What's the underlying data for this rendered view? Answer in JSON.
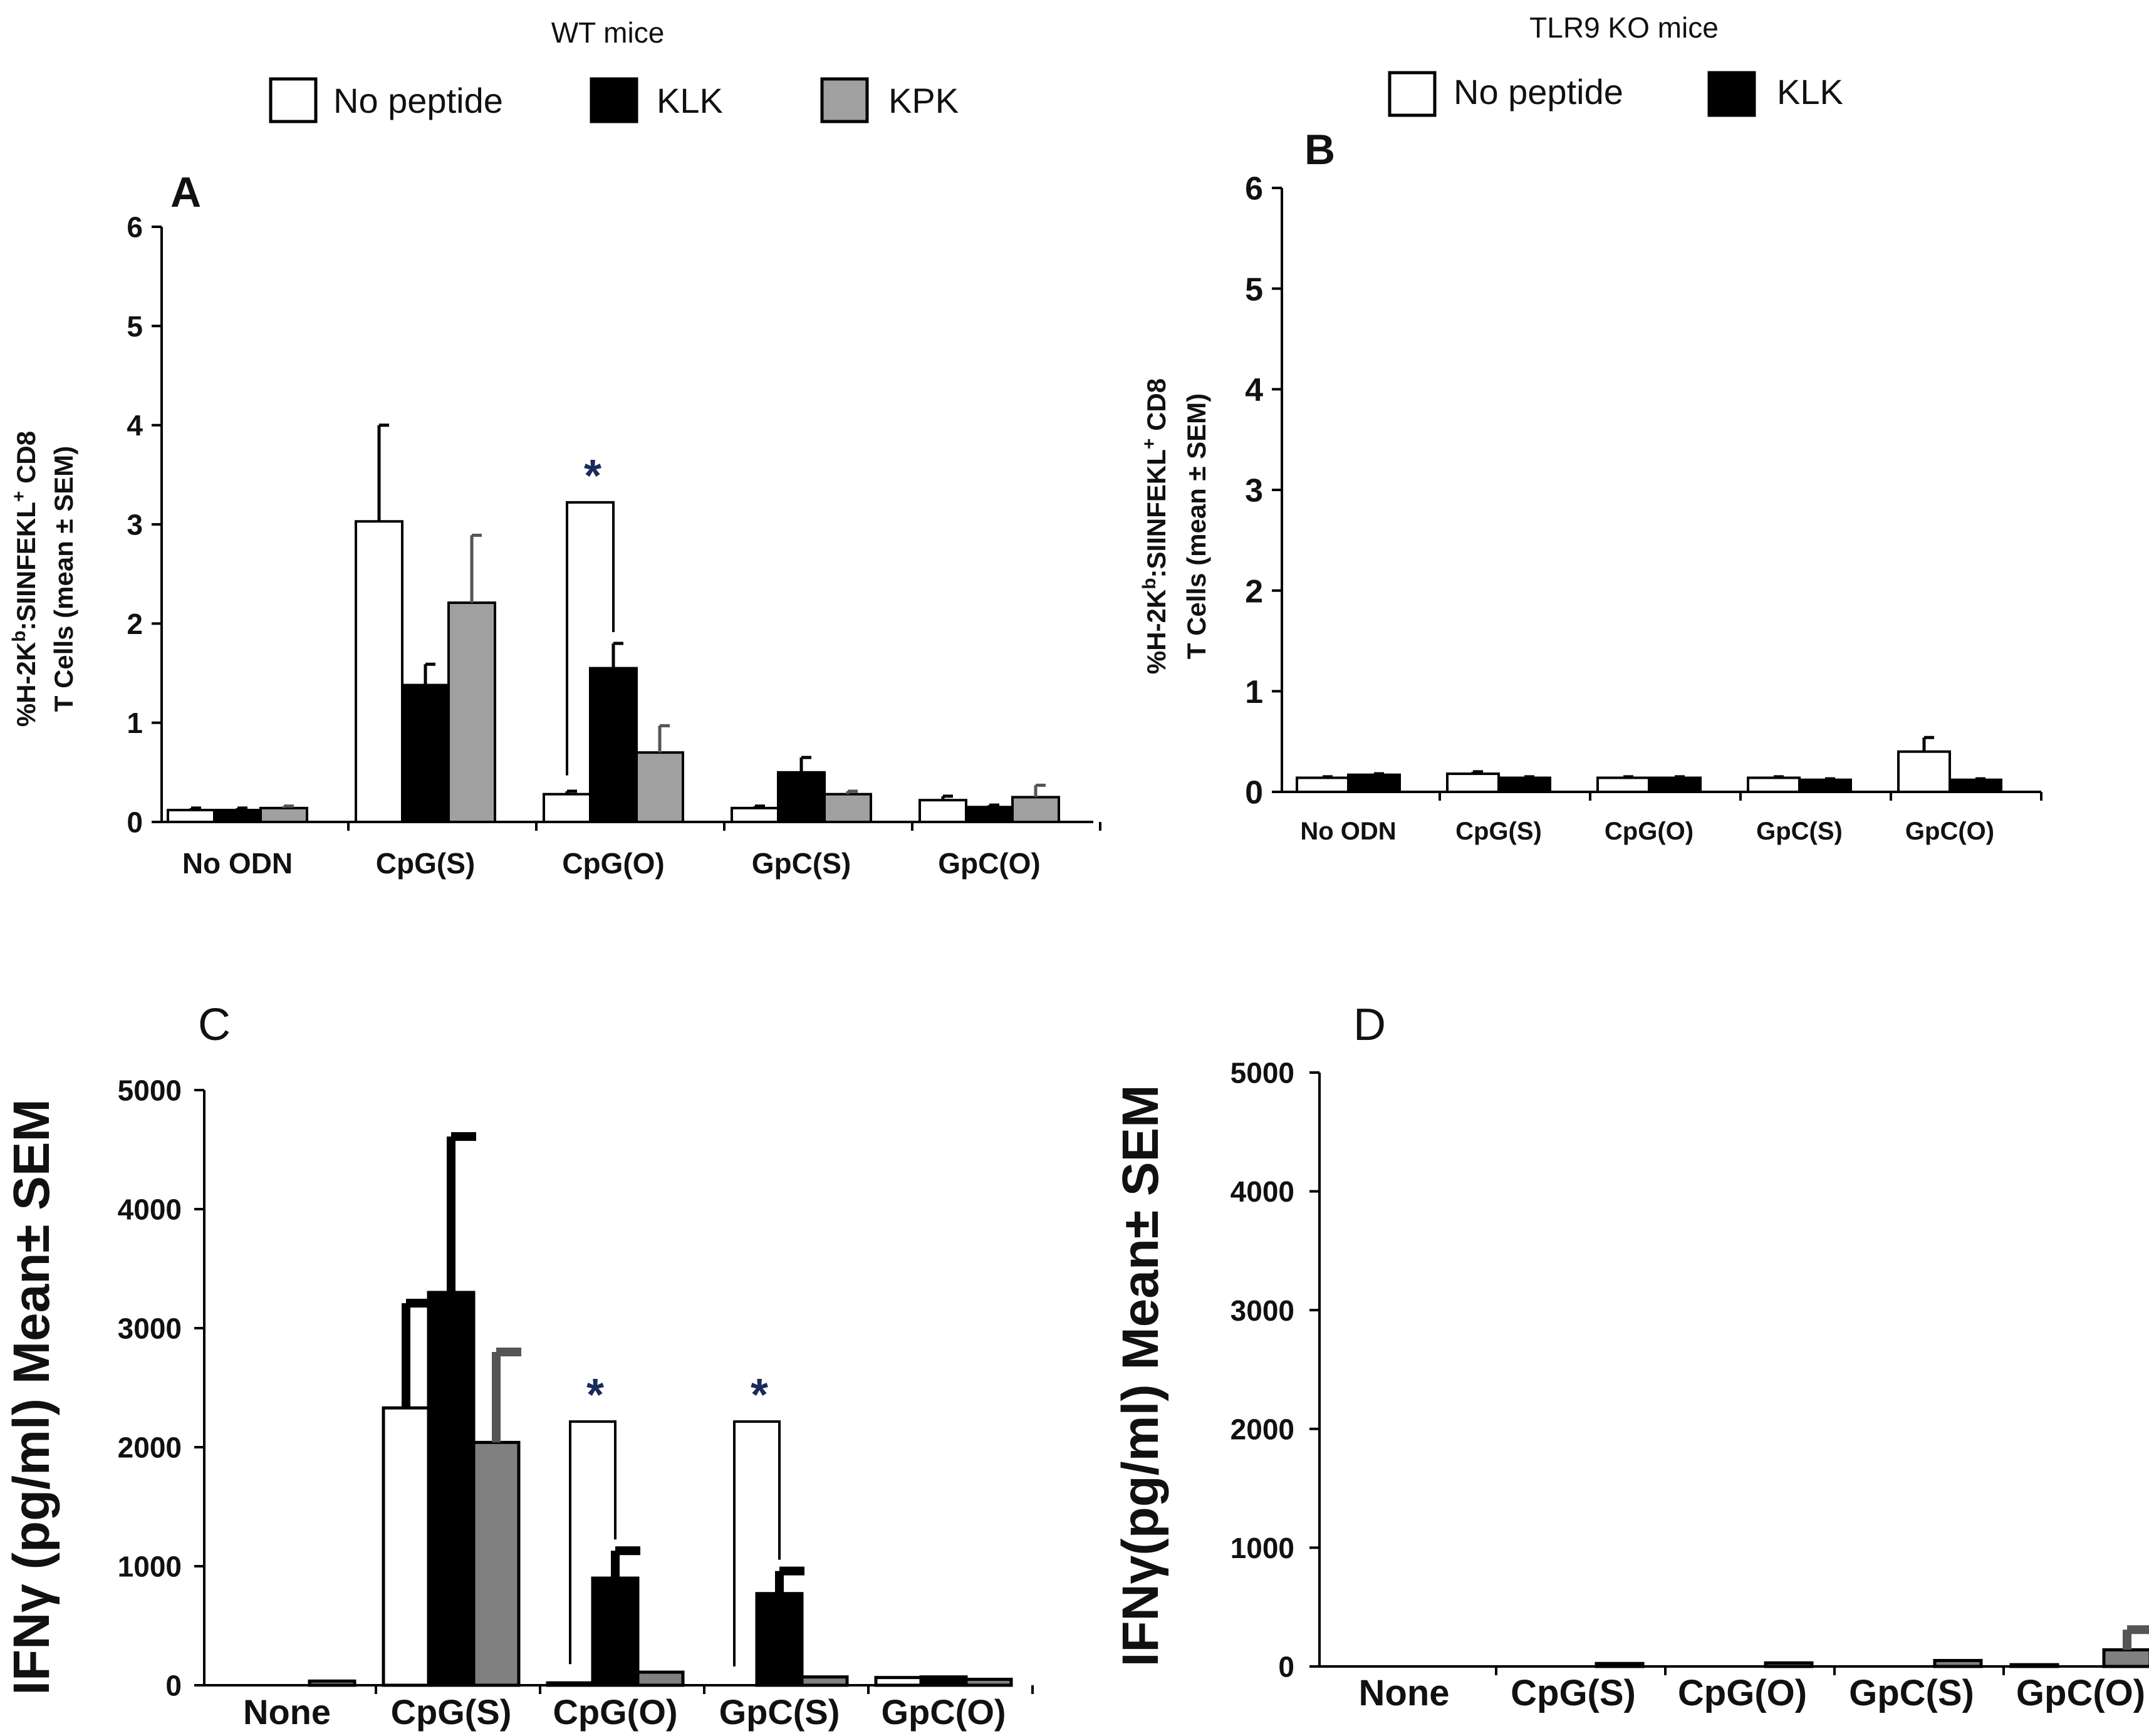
{
  "chart_data": [
    {
      "panel": "A",
      "type": "bar",
      "legend_title": "WT mice",
      "categories": [
        "No ODN",
        "CpG(S)",
        "CpG(O)",
        "GpC(S)",
        "GpC(O)"
      ],
      "series": [
        {
          "name": "No peptide",
          "color": "#ffffff",
          "values": [
            0.12,
            3.03,
            0.28,
            0.14,
            0.22
          ],
          "errors": [
            0.02,
            0.97,
            0.03,
            0.02,
            0.04
          ]
        },
        {
          "name": "KLK",
          "color": "#000000",
          "values": [
            0.12,
            1.38,
            1.55,
            0.5,
            0.15
          ],
          "errors": [
            0.02,
            0.21,
            0.25,
            0.15,
            0.02
          ]
        },
        {
          "name": "KPK",
          "color": "#a0a0a0",
          "values": [
            0.14,
            2.21,
            0.7,
            0.28,
            0.25
          ],
          "errors": [
            0.02,
            0.68,
            0.27,
            0.03,
            0.12
          ]
        }
      ],
      "ylabel_prefix": "%H-2K",
      "ylabel_sup1": "b",
      "ylabel_mid": ":SIINFEKL",
      "ylabel_sup2": "+",
      "ylabel_suffix": " CD8",
      "ylabel2": "T Cells (mean ± SEM)",
      "ylim": [
        0,
        6
      ],
      "yticks": [
        "0",
        "1",
        "2",
        "3",
        "4",
        "5",
        "6"
      ],
      "significance": [
        {
          "category": "CpG(O)",
          "label": "*"
        }
      ]
    },
    {
      "panel": "B",
      "type": "bar",
      "legend_title": "TLR9 KO mice",
      "categories": [
        "No ODN",
        "CpG(S)",
        "CpG(O)",
        "GpC(S)",
        "GpC(O)"
      ],
      "series": [
        {
          "name": "No peptide",
          "color": "#ffffff",
          "values": [
            0.14,
            0.18,
            0.14,
            0.14,
            0.4
          ],
          "errors": [
            0.01,
            0.02,
            0.01,
            0.01,
            0.14
          ]
        },
        {
          "name": "KLK",
          "color": "#000000",
          "values": [
            0.17,
            0.14,
            0.14,
            0.12,
            0.12
          ],
          "errors": [
            0.01,
            0.01,
            0.01,
            0.01,
            0.01
          ]
        }
      ],
      "ylabel_prefix": "%H-2K",
      "ylabel_sup1": "b",
      "ylabel_mid": ":SIINFEKL",
      "ylabel_sup2": "+",
      "ylabel_suffix": " CD8",
      "ylabel2": "T Cells (mean ± SEM)",
      "ylim": [
        0,
        6
      ],
      "yticks": [
        "0",
        "1",
        "2",
        "3",
        "4",
        "5",
        "6"
      ]
    },
    {
      "panel": "C",
      "type": "bar",
      "categories": [
        "None",
        "CpG(S)",
        "CpG(O)",
        "GpC(S)",
        "GpC(O)"
      ],
      "series": [
        {
          "name": "No peptide",
          "color": "#ffffff",
          "values": [
            0,
            2330,
            20,
            0,
            65
          ],
          "errors": [
            0,
            880,
            0,
            0,
            0
          ]
        },
        {
          "name": "KLK",
          "color": "#000000",
          "values": [
            0,
            3300,
            900,
            770,
            70
          ],
          "errors": [
            0,
            1310,
            230,
            190,
            0
          ]
        },
        {
          "name": "KPK",
          "color": "#808080",
          "values": [
            35,
            2040,
            110,
            70,
            50
          ],
          "errors": [
            0,
            760,
            0,
            0,
            0
          ]
        }
      ],
      "ylabel": "IFNγ (pg/ml) Mean± SEM",
      "ylim": [
        0,
        5000
      ],
      "yticks": [
        "0",
        "1000",
        "2000",
        "3000",
        "4000",
        "5000"
      ],
      "significance": [
        {
          "category": "CpG(O)",
          "label": "*"
        },
        {
          "category": "GpC(S)",
          "label": "*"
        }
      ]
    },
    {
      "panel": "D",
      "type": "bar",
      "categories": [
        "None",
        "CpG(S)",
        "CpG(O)",
        "GpC(S)",
        "GpC(O)"
      ],
      "series": [
        {
          "name": "No peptide",
          "color": "#ffffff",
          "values": [
            0,
            0,
            0,
            0,
            15
          ],
          "errors": [
            0,
            0,
            0,
            0,
            0
          ]
        },
        {
          "name": "KLK",
          "color": "#000000",
          "values": [
            0,
            0,
            0,
            0,
            0
          ],
          "errors": [
            0,
            0,
            0,
            0,
            0
          ]
        },
        {
          "name": "KPK",
          "color": "#808080",
          "values": [
            0,
            25,
            30,
            50,
            140
          ],
          "errors": [
            0,
            0,
            0,
            0,
            170
          ]
        }
      ],
      "ylabel": "IFNγ(pg/ml) Mean± SEM",
      "ylim": [
        0,
        5000
      ],
      "yticks": [
        "0",
        "1000",
        "2000",
        "3000",
        "4000",
        "5000"
      ]
    }
  ]
}
